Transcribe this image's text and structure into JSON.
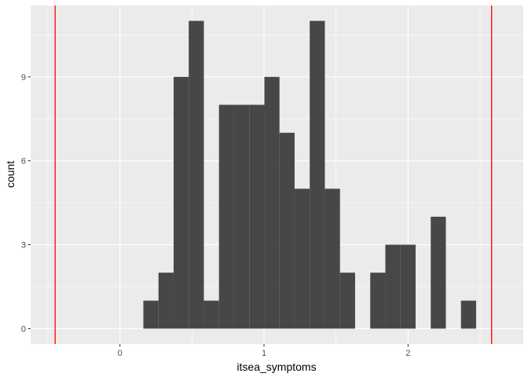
{
  "chart_data": {
    "type": "bar",
    "xlabel": "itsea_symptoms",
    "ylabel": "count",
    "xlim": [
      -0.62,
      2.8
    ],
    "ylim": [
      -0.55,
      11.55
    ],
    "x_ticks": [
      0,
      1,
      2
    ],
    "y_ticks": [
      0,
      3,
      6,
      9
    ],
    "grid": true,
    "bin_width": 0.105,
    "bins": [
      {
        "x": 0.215,
        "count": 1
      },
      {
        "x": 0.32,
        "count": 2
      },
      {
        "x": 0.425,
        "count": 9
      },
      {
        "x": 0.53,
        "count": 11
      },
      {
        "x": 0.635,
        "count": 1
      },
      {
        "x": 0.74,
        "count": 8
      },
      {
        "x": 0.845,
        "count": 8
      },
      {
        "x": 0.95,
        "count": 8
      },
      {
        "x": 1.055,
        "count": 9
      },
      {
        "x": 1.16,
        "count": 7
      },
      {
        "x": 1.265,
        "count": 5
      },
      {
        "x": 1.37,
        "count": 11
      },
      {
        "x": 1.475,
        "count": 5
      },
      {
        "x": 1.58,
        "count": 2
      },
      {
        "x": 1.685,
        "count": 0
      },
      {
        "x": 1.79,
        "count": 2
      },
      {
        "x": 1.895,
        "count": 3
      },
      {
        "x": 2.0,
        "count": 3
      },
      {
        "x": 2.105,
        "count": 0
      },
      {
        "x": 2.21,
        "count": 4
      },
      {
        "x": 2.315,
        "count": 0
      },
      {
        "x": 2.42,
        "count": 1
      }
    ],
    "vlines": [
      -0.45,
      2.58
    ],
    "colors": {
      "panel": "#ebebeb",
      "grid": "#ffffff",
      "bar": "#474747",
      "vline": "#ff0000"
    }
  }
}
